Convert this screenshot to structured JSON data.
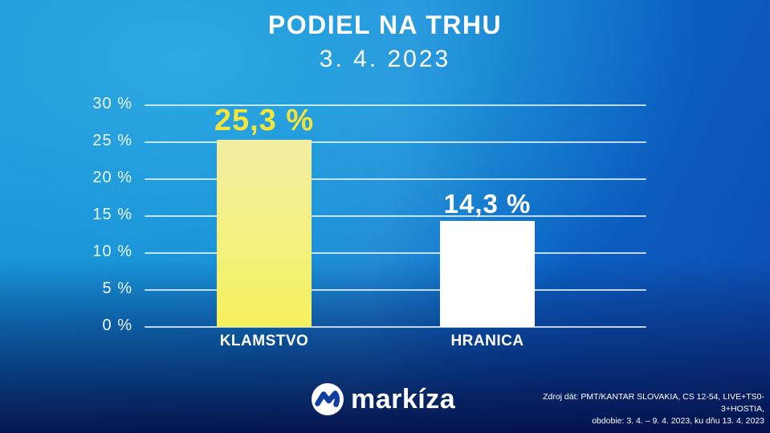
{
  "chart_data": {
    "type": "bar",
    "title": "PODIEL NA TRHU",
    "subtitle": "3. 4. 2023",
    "categories": [
      "KLAMSTVO",
      "HRANICA"
    ],
    "values": [
      25.3,
      14.3
    ],
    "value_labels": [
      "25,3 %",
      "14,3 %"
    ],
    "ylim": [
      0,
      30
    ],
    "ytick_step": 5,
    "ytick_labels": [
      "30 %",
      "25 %",
      "20 %",
      "15 %",
      "10 %",
      "5 %",
      "0 %"
    ],
    "grid": true,
    "legend": false,
    "bar_color_top": [
      "#f1eea4",
      "#ffffff"
    ],
    "bar_color_bottom": [
      "#f5f15e",
      "#ffffff"
    ],
    "value_label_colors": [
      "#f2e43d",
      "#ffffff"
    ],
    "axis_text_color": "#eef8ff",
    "gridline_color": "rgba(235,248,255,0.8)"
  },
  "footer": {
    "logo": {
      "icon": "markiza-wave-icon",
      "text": "markíza"
    },
    "source_line1": "Zdroj dát: PMT/KANTAR SLOVAKIA, CS 12-54, LIVE+TS0-3+HOSTIA,",
    "source_line2": "obdobie: 3. 4. – 9. 4. 2023, ku dňu 13. 4. 2023"
  },
  "background": {
    "top_left": "#1697da",
    "center": "#0e86d3",
    "right": "#0c4db0",
    "bottom": "#051a54"
  }
}
